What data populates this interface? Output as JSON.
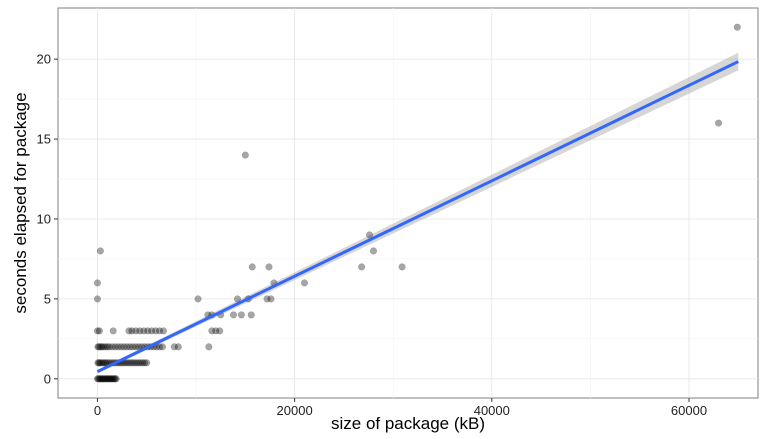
{
  "chart_data": {
    "type": "scatter",
    "title": "",
    "xlabel": "size of package (kB)",
    "ylabel": "seconds elapsed for package",
    "xlim": [
      -4000,
      67000
    ],
    "ylim": [
      -1.2,
      23.2
    ],
    "x_ticks": [
      0,
      20000,
      40000,
      60000
    ],
    "y_ticks": [
      0,
      5,
      10,
      15,
      20
    ],
    "x_tick_labels": [
      "0",
      "20000",
      "40000",
      "60000"
    ],
    "y_tick_labels": [
      "0",
      "5",
      "10",
      "15",
      "20"
    ],
    "grid": true,
    "legend": "none",
    "point_color": "#000000",
    "point_opacity": 0.35,
    "fit_line": {
      "method": "linear",
      "color": "#3366FF",
      "band_color": "#999999",
      "x": [
        0,
        65000
      ],
      "y": [
        0.45,
        19.85
      ],
      "ci_halfwidth": [
        0.1,
        0.55
      ]
    },
    "points": [
      [
        0,
        0
      ],
      [
        100,
        0
      ],
      [
        200,
        0
      ],
      [
        300,
        0
      ],
      [
        400,
        0
      ],
      [
        500,
        0
      ],
      [
        600,
        0
      ],
      [
        700,
        0
      ],
      [
        800,
        0
      ],
      [
        900,
        0
      ],
      [
        1000,
        0
      ],
      [
        1100,
        0
      ],
      [
        1200,
        0
      ],
      [
        1300,
        0
      ],
      [
        1400,
        0
      ],
      [
        1500,
        0
      ],
      [
        1600,
        0
      ],
      [
        1700,
        0
      ],
      [
        1800,
        0
      ],
      [
        1900,
        0
      ],
      [
        50,
        1
      ],
      [
        150,
        1
      ],
      [
        250,
        1
      ],
      [
        400,
        1
      ],
      [
        550,
        1
      ],
      [
        700,
        1
      ],
      [
        850,
        1
      ],
      [
        1000,
        1
      ],
      [
        1200,
        1
      ],
      [
        1400,
        1
      ],
      [
        1600,
        1
      ],
      [
        1800,
        1
      ],
      [
        2000,
        1
      ],
      [
        2200,
        1
      ],
      [
        2400,
        1
      ],
      [
        2600,
        1
      ],
      [
        2800,
        1
      ],
      [
        3000,
        1
      ],
      [
        3200,
        1
      ],
      [
        3400,
        1
      ],
      [
        3600,
        1
      ],
      [
        3800,
        1
      ],
      [
        4000,
        1
      ],
      [
        4200,
        1
      ],
      [
        4400,
        1
      ],
      [
        4600,
        1
      ],
      [
        4800,
        1
      ],
      [
        5000,
        1
      ],
      [
        50,
        2
      ],
      [
        150,
        2
      ],
      [
        300,
        2
      ],
      [
        450,
        2
      ],
      [
        600,
        2
      ],
      [
        800,
        2
      ],
      [
        1000,
        2
      ],
      [
        1200,
        2
      ],
      [
        1500,
        2
      ],
      [
        1800,
        2
      ],
      [
        2100,
        2
      ],
      [
        2400,
        2
      ],
      [
        2700,
        2
      ],
      [
        3000,
        2
      ],
      [
        3300,
        2
      ],
      [
        3600,
        2
      ],
      [
        3900,
        2
      ],
      [
        4200,
        2
      ],
      [
        4500,
        2
      ],
      [
        4800,
        2
      ],
      [
        5100,
        2
      ],
      [
        5400,
        2
      ],
      [
        5700,
        2
      ],
      [
        6000,
        2
      ],
      [
        6300,
        2
      ],
      [
        6600,
        2
      ],
      [
        7800,
        2
      ],
      [
        8200,
        2
      ],
      [
        11300,
        2
      ],
      [
        0,
        3
      ],
      [
        200,
        3
      ],
      [
        1600,
        3
      ],
      [
        3200,
        3
      ],
      [
        3500,
        3
      ],
      [
        3900,
        3
      ],
      [
        4300,
        3
      ],
      [
        4700,
        3
      ],
      [
        5100,
        3
      ],
      [
        5500,
        3
      ],
      [
        5900,
        3
      ],
      [
        6300,
        3
      ],
      [
        6700,
        3
      ],
      [
        11600,
        3
      ],
      [
        12000,
        3
      ],
      [
        12400,
        3
      ],
      [
        11200,
        4
      ],
      [
        11600,
        4
      ],
      [
        12500,
        4
      ],
      [
        13800,
        4
      ],
      [
        14600,
        4
      ],
      [
        15600,
        4
      ],
      [
        0,
        5
      ],
      [
        10200,
        5
      ],
      [
        14200,
        5
      ],
      [
        15300,
        5
      ],
      [
        17200,
        5
      ],
      [
        17600,
        5
      ],
      [
        0,
        6
      ],
      [
        17900,
        6
      ],
      [
        21000,
        6
      ],
      [
        15700,
        7
      ],
      [
        17400,
        7
      ],
      [
        26800,
        7
      ],
      [
        30900,
        7
      ],
      [
        300,
        8
      ],
      [
        28000,
        8
      ],
      [
        27600,
        9
      ],
      [
        15000,
        14
      ],
      [
        63000,
        16
      ],
      [
        64900,
        22
      ]
    ]
  }
}
